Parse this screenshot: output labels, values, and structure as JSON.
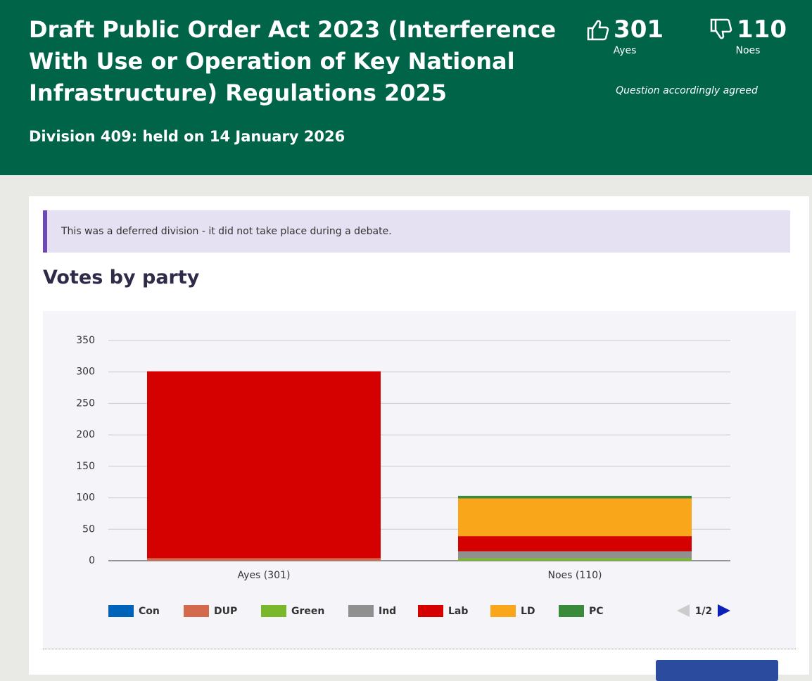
{
  "header": {
    "title": "Draft Public Order Act 2023 (Interference With Use or Operation of Key National Infrastructure) Regulations 2025",
    "subtitle": "Division 409: held on 14 January 2026",
    "ayes_count": "301",
    "ayes_label": "Ayes",
    "noes_count": "110",
    "noes_label": "Noes",
    "outcome": "Question accordingly agreed"
  },
  "notice": "This was a deferred division - it did not take place during a debate.",
  "section_title": "Votes by party",
  "legend_page": "1/2",
  "chart_data": {
    "type": "stacked_bar",
    "categories": [
      "Ayes (301)",
      "Noes (110)"
    ],
    "series": [
      {
        "name": "Con",
        "color": "#0063ba",
        "values": [
          0,
          0
        ]
      },
      {
        "name": "DUP",
        "color": "#d46a4c",
        "values": [
          4,
          0
        ]
      },
      {
        "name": "Green",
        "color": "#78b82a",
        "values": [
          0,
          4
        ]
      },
      {
        "name": "Ind",
        "color": "#909090",
        "values": [
          0,
          11
        ]
      },
      {
        "name": "Lab",
        "color": "#d50000",
        "values": [
          297,
          24
        ]
      },
      {
        "name": "LD",
        "color": "#faa61a",
        "values": [
          0,
          60
        ]
      },
      {
        "name": "PC",
        "color": "#3a8a3c",
        "values": [
          0,
          4
        ]
      }
    ],
    "ylim": [
      0,
      350
    ],
    "yticks": [
      0,
      50,
      100,
      150,
      200,
      250,
      300,
      350
    ],
    "grid": true
  }
}
